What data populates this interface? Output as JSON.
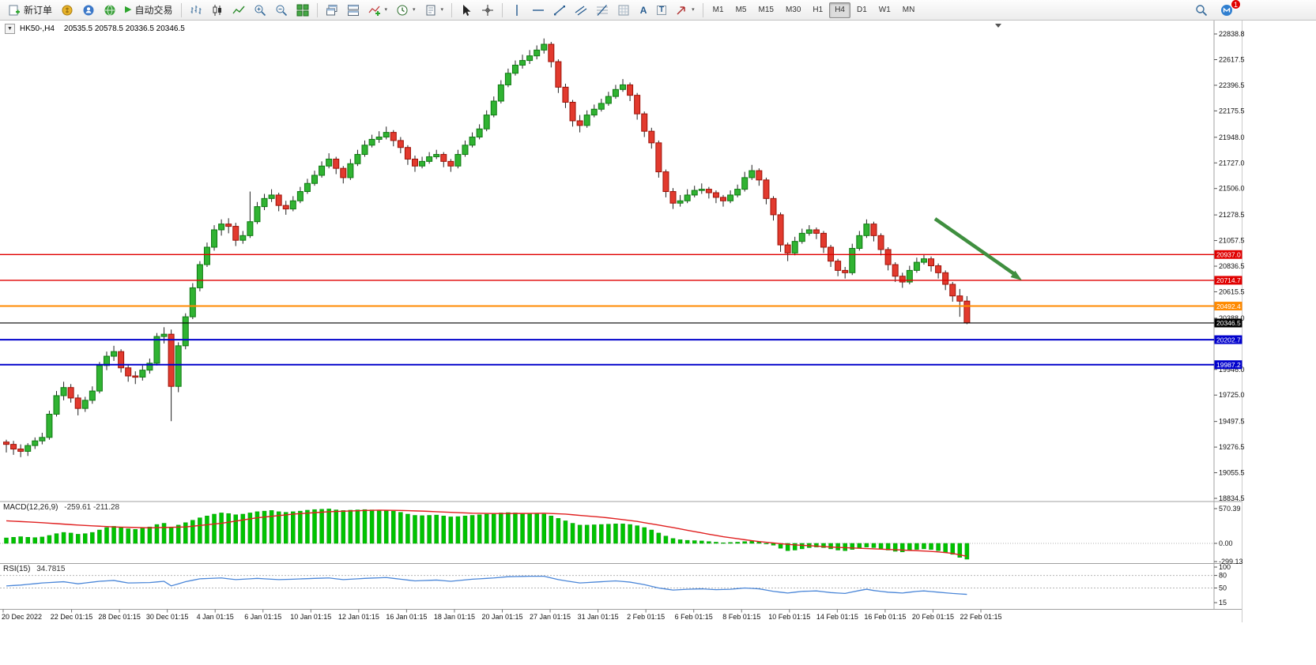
{
  "icons": {
    "one_click": "▼",
    "caret": "▾",
    "play": "▶",
    "text_tool": "A",
    "label_tool": "T"
  },
  "toolbar": {
    "new_order_label": "新订单",
    "autotrade_label": "自动交易",
    "timeframes": [
      "M1",
      "M5",
      "M15",
      "M30",
      "H1",
      "H4",
      "D1",
      "W1",
      "MN"
    ],
    "active_timeframe": "H4",
    "notification_count": "1"
  },
  "chart": {
    "title": "HK50-,H4",
    "ohlc_text": "20535.5 20578.5 20336.5 20346.5",
    "colors": {
      "up": "#30b332",
      "up_border": "#0f7a12",
      "down": "#e23a2e",
      "down_border": "#9e1208",
      "wick": "#222222",
      "macd_hist": "#00c300",
      "macd_signal": "#e02020",
      "rsi_line": "#4a86d8",
      "hline_red": "#e00000",
      "hline_orange": "#ff8a00",
      "hline_blue": "#0202cc",
      "current_line": "#000000",
      "arrow": "#3f8f3f"
    },
    "price_axis_ticks": [
      22838.8,
      22617.5,
      22396.5,
      22175.5,
      21948.0,
      21727.0,
      21506.0,
      21278.5,
      21057.5,
      20836.5,
      20615.5,
      20388.0,
      19946.0,
      19725.0,
      19497.5,
      19276.5,
      19055.5,
      18834.5
    ],
    "hlines": [
      {
        "price": 20937.0,
        "label": "20937.0",
        "color": "#e00000",
        "width": 1.4
      },
      {
        "price": 20714.7,
        "label": "20714.7",
        "color": "#e00000",
        "width": 1.4
      },
      {
        "price": 20492.4,
        "label": "20492.4",
        "color": "#ff8a00",
        "width": 2
      },
      {
        "price": 20202.7,
        "label": "20202.7",
        "color": "#0202cc",
        "width": 2
      },
      {
        "price": 19987.2,
        "label": "19987.2",
        "color": "#0202cc",
        "width": 2
      }
    ],
    "current_price": {
      "price": 20346.5,
      "label": "20346.5",
      "bg": "#000000"
    },
    "time_labels": [
      "20 Dec 2022",
      "22 Dec 01:15",
      "28 Dec 01:15",
      "30 Dec 01:15",
      "4 Jan 01:15",
      "6 Jan 01:15",
      "10 Jan 01:15",
      "12 Jan 01:15",
      "16 Jan 01:15",
      "18 Jan 01:15",
      "20 Jan 01:15",
      "27 Jan 01:15",
      "31 Jan 01:15",
      "2 Feb 01:15",
      "6 Feb 01:15",
      "8 Feb 01:15",
      "10 Feb 01:15",
      "14 Feb 01:15",
      "16 Feb 01:15",
      "20 Feb 01:15",
      "22 Feb 01:15"
    ]
  },
  "chart_data": {
    "type": "candlestick",
    "symbol": "HK50-",
    "timeframe": "H4",
    "ohlc_current": {
      "open": 20535.5,
      "high": 20578.5,
      "low": 20336.5,
      "close": 20346.5
    },
    "price_range": {
      "top": 22838.8,
      "bottom": 18834.5
    },
    "candles": [
      [
        19320,
        19340,
        19230,
        19300
      ],
      [
        19300,
        19330,
        19210,
        19260
      ],
      [
        19260,
        19300,
        19190,
        19240
      ],
      [
        19240,
        19310,
        19200,
        19290
      ],
      [
        19290,
        19360,
        19260,
        19330
      ],
      [
        19330,
        19400,
        19300,
        19360
      ],
      [
        19360,
        19590,
        19340,
        19560
      ],
      [
        19560,
        19760,
        19540,
        19720
      ],
      [
        19720,
        19840,
        19680,
        19790
      ],
      [
        19790,
        19820,
        19660,
        19700
      ],
      [
        19700,
        19730,
        19550,
        19610
      ],
      [
        19610,
        19710,
        19580,
        19680
      ],
      [
        19680,
        19800,
        19650,
        19760
      ],
      [
        19760,
        20010,
        19740,
        19980
      ],
      [
        19980,
        20100,
        19940,
        20060
      ],
      [
        20060,
        20150,
        20020,
        20100
      ],
      [
        20100,
        20120,
        19920,
        19960
      ],
      [
        19960,
        19990,
        19840,
        19890
      ],
      [
        19890,
        19930,
        19820,
        19880
      ],
      [
        19880,
        19980,
        19850,
        19940
      ],
      [
        19940,
        20040,
        19910,
        20000
      ],
      [
        20000,
        20260,
        19980,
        20230
      ],
      [
        20230,
        20310,
        20170,
        20250
      ],
      [
        20250,
        20290,
        19500,
        19800
      ],
      [
        19800,
        20180,
        19750,
        20150
      ],
      [
        20150,
        20430,
        20120,
        20400
      ],
      [
        20400,
        20690,
        20380,
        20650
      ],
      [
        20650,
        20880,
        20620,
        20850
      ],
      [
        20850,
        21040,
        20830,
        21000
      ],
      [
        21000,
        21190,
        20970,
        21150
      ],
      [
        21150,
        21240,
        21100,
        21200
      ],
      [
        21200,
        21250,
        21120,
        21180
      ],
      [
        21180,
        21210,
        21010,
        21060
      ],
      [
        21060,
        21140,
        21030,
        21100
      ],
      [
        21100,
        21480,
        21080,
        21220
      ],
      [
        21220,
        21390,
        21200,
        21350
      ],
      [
        21350,
        21460,
        21320,
        21420
      ],
      [
        21420,
        21500,
        21390,
        21450
      ],
      [
        21450,
        21470,
        21310,
        21360
      ],
      [
        21360,
        21400,
        21280,
        21330
      ],
      [
        21330,
        21440,
        21310,
        21400
      ],
      [
        21400,
        21520,
        21380,
        21480
      ],
      [
        21480,
        21590,
        21460,
        21550
      ],
      [
        21550,
        21660,
        21530,
        21620
      ],
      [
        21620,
        21740,
        21600,
        21700
      ],
      [
        21700,
        21810,
        21680,
        21760
      ],
      [
        21760,
        21780,
        21630,
        21680
      ],
      [
        21680,
        21700,
        21550,
        21600
      ],
      [
        21600,
        21760,
        21580,
        21720
      ],
      [
        21720,
        21840,
        21700,
        21800
      ],
      [
        21800,
        21920,
        21780,
        21880
      ],
      [
        21880,
        21970,
        21860,
        21930
      ],
      [
        21930,
        22000,
        21900,
        21950
      ],
      [
        21950,
        22040,
        21930,
        21990
      ],
      [
        21990,
        22010,
        21870,
        21920
      ],
      [
        21920,
        21950,
        21810,
        21860
      ],
      [
        21860,
        21880,
        21710,
        21760
      ],
      [
        21760,
        21790,
        21650,
        21700
      ],
      [
        21700,
        21780,
        21680,
        21740
      ],
      [
        21740,
        21820,
        21720,
        21780
      ],
      [
        21780,
        21840,
        21760,
        21800
      ],
      [
        21800,
        21820,
        21690,
        21740
      ],
      [
        21740,
        21760,
        21650,
        21700
      ],
      [
        21700,
        21840,
        21680,
        21800
      ],
      [
        21800,
        21920,
        21780,
        21880
      ],
      [
        21880,
        21990,
        21860,
        21950
      ],
      [
        21950,
        22060,
        21930,
        22020
      ],
      [
        22020,
        22180,
        22000,
        22140
      ],
      [
        22140,
        22300,
        22120,
        22260
      ],
      [
        22260,
        22440,
        22240,
        22400
      ],
      [
        22400,
        22540,
        22380,
        22500
      ],
      [
        22500,
        22610,
        22480,
        22570
      ],
      [
        22570,
        22660,
        22540,
        22610
      ],
      [
        22610,
        22700,
        22580,
        22650
      ],
      [
        22650,
        22740,
        22620,
        22700
      ],
      [
        22700,
        22800,
        22670,
        22750
      ],
      [
        22750,
        22770,
        22550,
        22600
      ],
      [
        22600,
        22620,
        22330,
        22380
      ],
      [
        22380,
        22410,
        22200,
        22250
      ],
      [
        22250,
        22270,
        22040,
        22090
      ],
      [
        22090,
        22140,
        21990,
        22050
      ],
      [
        22050,
        22180,
        22030,
        22140
      ],
      [
        22140,
        22230,
        22120,
        22190
      ],
      [
        22190,
        22280,
        22170,
        22240
      ],
      [
        22240,
        22340,
        22220,
        22300
      ],
      [
        22300,
        22400,
        22280,
        22360
      ],
      [
        22360,
        22450,
        22340,
        22400
      ],
      [
        22400,
        22420,
        22260,
        22310
      ],
      [
        22310,
        22330,
        22100,
        22150
      ],
      [
        22150,
        22170,
        21950,
        22000
      ],
      [
        22000,
        22030,
        21850,
        21900
      ],
      [
        21900,
        21920,
        21600,
        21650
      ],
      [
        21650,
        21670,
        21430,
        21480
      ],
      [
        21480,
        21510,
        21330,
        21380
      ],
      [
        21380,
        21450,
        21350,
        21400
      ],
      [
        21400,
        21500,
        21380,
        21450
      ],
      [
        21450,
        21530,
        21430,
        21490
      ],
      [
        21490,
        21550,
        21460,
        21500
      ],
      [
        21500,
        21520,
        21420,
        21470
      ],
      [
        21470,
        21490,
        21380,
        21430
      ],
      [
        21430,
        21450,
        21350,
        21400
      ],
      [
        21400,
        21490,
        21380,
        21450
      ],
      [
        21450,
        21540,
        21430,
        21500
      ],
      [
        21500,
        21650,
        21480,
        21600
      ],
      [
        21600,
        21710,
        21580,
        21660
      ],
      [
        21660,
        21680,
        21530,
        21580
      ],
      [
        21580,
        21600,
        21370,
        21420
      ],
      [
        21420,
        21440,
        21230,
        21280
      ],
      [
        21280,
        21300,
        20960,
        21020
      ],
      [
        21020,
        21040,
        20880,
        20950
      ],
      [
        20950,
        21090,
        20930,
        21050
      ],
      [
        21050,
        21160,
        21030,
        21120
      ],
      [
        21120,
        21190,
        21100,
        21150
      ],
      [
        21150,
        21170,
        21070,
        21120
      ],
      [
        21120,
        21140,
        20950,
        21000
      ],
      [
        21000,
        21020,
        20830,
        20880
      ],
      [
        20880,
        20900,
        20750,
        20800
      ],
      [
        20800,
        20830,
        20730,
        20780
      ],
      [
        20780,
        21030,
        20760,
        20990
      ],
      [
        20990,
        21140,
        20970,
        21100
      ],
      [
        21100,
        21240,
        21080,
        21200
      ],
      [
        21200,
        21220,
        21050,
        21100
      ],
      [
        21100,
        21120,
        20930,
        20980
      ],
      [
        20980,
        21000,
        20800,
        20850
      ],
      [
        20850,
        20870,
        20700,
        20750
      ],
      [
        20750,
        20780,
        20650,
        20700
      ],
      [
        20700,
        20840,
        20680,
        20800
      ],
      [
        20800,
        20910,
        20780,
        20870
      ],
      [
        20870,
        20940,
        20850,
        20900
      ],
      [
        20900,
        20920,
        20790,
        20840
      ],
      [
        20840,
        20860,
        20730,
        20780
      ],
      [
        20780,
        20800,
        20630,
        20680
      ],
      [
        20680,
        20700,
        20530,
        20580
      ],
      [
        20580,
        20640,
        20400,
        20535
      ],
      [
        20535.5,
        20578.5,
        20336.5,
        20346.5
      ]
    ],
    "macd": {
      "label": "MACD(12,26,9)",
      "value_text": "-259.61 -211.28",
      "axis_max": 570.39,
      "axis_min": -299.13,
      "histogram": [
        90,
        100,
        110,
        100,
        95,
        105,
        130,
        160,
        180,
        170,
        150,
        160,
        180,
        220,
        260,
        280,
        260,
        240,
        230,
        250,
        270,
        310,
        330,
        260,
        300,
        340,
        380,
        420,
        450,
        480,
        500,
        490,
        470,
        480,
        500,
        520,
        530,
        540,
        520,
        510,
        520,
        530,
        545,
        555,
        560,
        565,
        550,
        540,
        545,
        550,
        555,
        550,
        545,
        540,
        530,
        510,
        480,
        460,
        455,
        460,
        465,
        450,
        435,
        440,
        450,
        460,
        470,
        480,
        490,
        500,
        505,
        500,
        495,
        490,
        485,
        480,
        450,
        410,
        370,
        330,
        300,
        300,
        305,
        310,
        315,
        320,
        320,
        310,
        290,
        260,
        220,
        170,
        120,
        80,
        60,
        50,
        45,
        40,
        30,
        20,
        10,
        15,
        20,
        30,
        35,
        25,
        0,
        -30,
        -80,
        -120,
        -110,
        -90,
        -70,
        -60,
        -70,
        -90,
        -110,
        -120,
        -100,
        -80,
        -60,
        -70,
        -90,
        -110,
        -130,
        -140,
        -120,
        -100,
        -90,
        -100,
        -120,
        -150,
        -180,
        -230,
        -259.61
      ],
      "signal": [
        370,
        364,
        358,
        352,
        346,
        340,
        332,
        324,
        316,
        308,
        300,
        294,
        288,
        282,
        276,
        270,
        267,
        264,
        261,
        258,
        255,
        258,
        261,
        264,
        267,
        270,
        282,
        294,
        306,
        318,
        330,
        348,
        366,
        384,
        402,
        420,
        432,
        444,
        456,
        468,
        480,
        488,
        496,
        504,
        512,
        520,
        524,
        528,
        532,
        536,
        540,
        542,
        545,
        543,
        542,
        540,
        537,
        533,
        530,
        525,
        520,
        515,
        510,
        505,
        500,
        495,
        493,
        492,
        490,
        490,
        490,
        491,
        491,
        492,
        494,
        495,
        490,
        485,
        480,
        470,
        460,
        450,
        440,
        430,
        418,
        405,
        390,
        375,
        360,
        340,
        320,
        300,
        280,
        260,
        238,
        215,
        193,
        172,
        150,
        130,
        110,
        93,
        77,
        60,
        45,
        30,
        18,
        7,
        -5,
        -15,
        -25,
        -32,
        -38,
        -45,
        -52,
        -60,
        -65,
        -70,
        -75,
        -80,
        -85,
        -90,
        -95,
        -100,
        -105,
        -110,
        -115,
        -120,
        -125,
        -132,
        -140,
        -152,
        -165,
        -188,
        -211.28
      ]
    },
    "rsi": {
      "label": "RSI(15)",
      "value_text": "34.7815",
      "levels": [
        100,
        80,
        50,
        15
      ],
      "values": [
        55,
        56,
        57,
        58.7,
        60.3,
        62,
        63,
        64,
        65,
        62.5,
        60,
        62,
        64,
        66,
        67,
        68,
        65,
        62,
        62.3,
        62.7,
        63,
        64.5,
        66,
        55,
        60,
        65,
        68.5,
        72,
        72.7,
        73.3,
        74,
        72,
        70,
        71,
        72,
        73,
        72,
        71,
        70,
        70.5,
        71,
        71.7,
        72.3,
        73,
        73.5,
        74,
        72,
        70,
        71,
        72,
        73,
        73.7,
        74.3,
        75,
        73,
        71,
        69,
        67,
        67.7,
        68.3,
        69,
        67.5,
        66,
        67.7,
        69.3,
        71,
        72,
        73,
        74,
        75.5,
        77,
        77.3,
        77.7,
        78,
        78,
        78,
        74,
        70,
        67.3,
        64.7,
        62,
        63,
        64,
        65,
        66,
        67,
        65.5,
        64,
        61,
        58,
        54,
        50,
        47.5,
        45,
        46,
        47,
        47.5,
        48,
        47,
        46,
        46.5,
        47,
        48.5,
        50,
        49,
        48,
        45,
        42,
        40,
        38,
        40,
        42,
        42.5,
        43,
        41,
        39,
        38,
        37,
        40.5,
        44,
        47,
        44,
        42,
        40,
        39,
        38,
        40,
        42,
        43,
        41.5,
        40,
        38.5,
        37,
        35.9,
        34.78
      ]
    }
  }
}
